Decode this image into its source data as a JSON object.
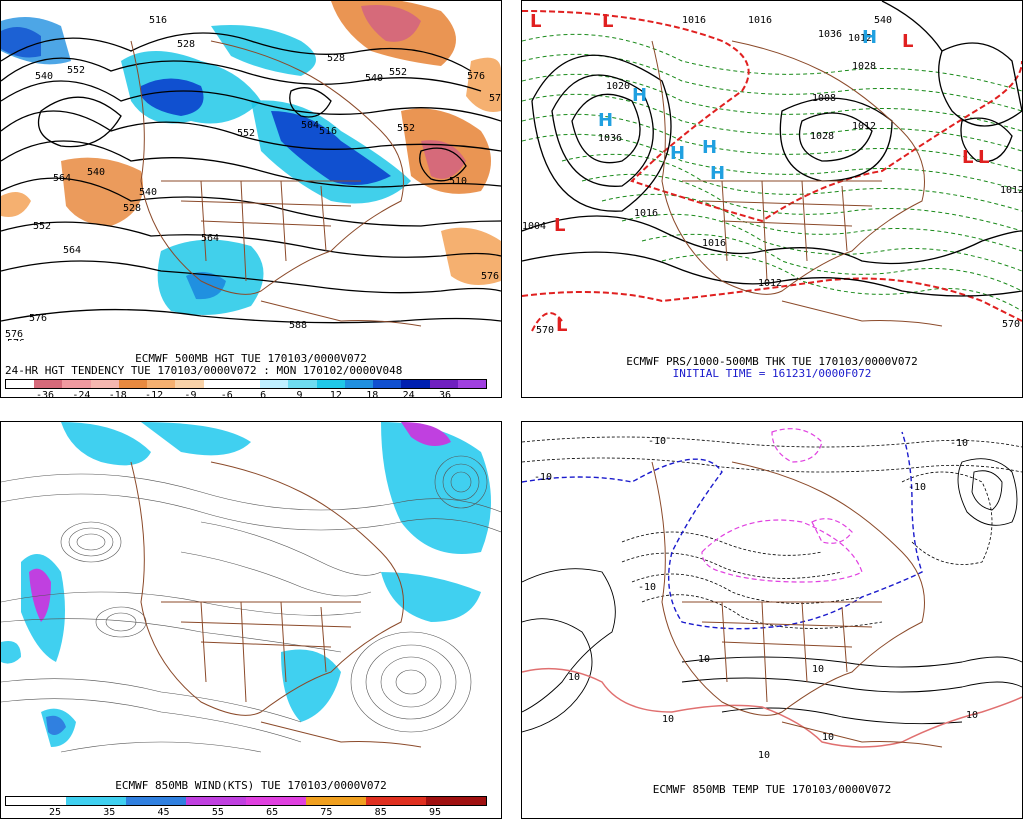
{
  "panels": [
    {
      "id": "p1",
      "caption_lines": [
        "ECMWF 500MB HGT TUE 170103/0000V072",
        "24-HR HGT TENDENCY TUE 170103/0000V072 : MON 170102/0000V048"
      ],
      "colorbar": {
        "colors": [
          "#ffffff",
          "#d66a7a",
          "#f09aa0",
          "#f5b7b0",
          "#e88a40",
          "#f5b070",
          "#f9d2a8",
          "#ffffff",
          "#ffffff",
          "#bfefff",
          "#6fdcf0",
          "#20c8e8",
          "#2090e0",
          "#1050d0",
          "#0020b0",
          "#7020c0",
          "#a040e0"
        ],
        "labels": [
          "-36",
          "-24",
          "-18",
          "-12",
          "-9",
          "-6",
          "6",
          "9",
          "12",
          "18",
          "24",
          "36"
        ]
      },
      "contour_labels": [
        "516",
        "528",
        "540",
        "552",
        "564",
        "576",
        "552",
        "540",
        "528",
        "504",
        "516",
        "528",
        "540",
        "552",
        "576",
        "564",
        "540",
        "510",
        "552",
        "552",
        "564",
        "576",
        "588",
        "576",
        "576",
        "576"
      ]
    },
    {
      "id": "p2",
      "caption_lines": [
        "ECMWF PRS/1000-500MB THK TUE 170103/0000V072",
        "INITIAL TIME = 161231/0000F072"
      ],
      "pressure_labels": [
        "1036",
        "1036",
        "1028",
        "1020",
        "1028",
        "1016",
        "1012",
        "1016",
        "1012",
        "1008",
        "1004",
        "1012",
        "1012",
        "1016",
        "1016"
      ],
      "centers": [
        {
          "type": "L",
          "color": "#e02020"
        },
        {
          "type": "L",
          "color": "#e02020"
        },
        {
          "type": "L",
          "color": "#e02020"
        },
        {
          "type": "L",
          "color": "#e02020"
        },
        {
          "type": "L",
          "color": "#e02020"
        },
        {
          "type": "L",
          "color": "#e02020"
        },
        {
          "type": "L",
          "color": "#e02020"
        },
        {
          "type": "H",
          "color": "#20a0e0"
        },
        {
          "type": "H",
          "color": "#20a0e0"
        },
        {
          "type": "H",
          "color": "#20a0e0"
        },
        {
          "type": "H",
          "color": "#20a0e0"
        },
        {
          "type": "H",
          "color": "#20a0e0"
        },
        {
          "type": "H",
          "color": "#20a0e0"
        }
      ],
      "thickness_labels": [
        "540",
        "570",
        "570"
      ]
    },
    {
      "id": "p3",
      "caption_lines": [
        "ECMWF 850MB WIND(KTS) TUE 170103/0000V072"
      ],
      "colorbar": {
        "colors": [
          "#ffffff",
          "#ffffff",
          "#40d0f0",
          "#40d0f0",
          "#3080e0",
          "#3080e0",
          "#c040e0",
          "#c040e0",
          "#e040e0",
          "#e040e0",
          "#f0a020",
          "#f0a020",
          "#e03020",
          "#e03020",
          "#a01010",
          "#a01010"
        ],
        "labels": [
          "25",
          "35",
          "45",
          "55",
          "65",
          "75",
          "85",
          "95"
        ]
      }
    },
    {
      "id": "p4",
      "caption_lines": [
        "ECMWF 850MB TEMP TUE 170103/0000V072"
      ],
      "temp_labels": [
        "-10",
        "-10",
        "-10",
        "-10",
        "-10",
        "10",
        "10",
        "10",
        "10",
        "10",
        "10",
        "10"
      ]
    }
  ]
}
